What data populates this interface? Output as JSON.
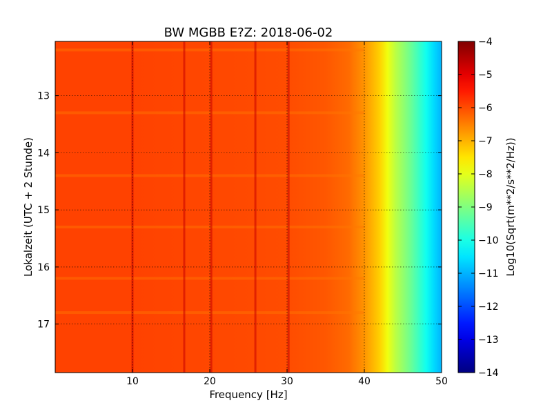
{
  "chart_data": {
    "type": "heatmap",
    "title": "BW MGBB E?Z: 2018-06-02",
    "xlabel": "Frequency [Hz]",
    "ylabel": "Lokalzeit (UTC + 2 Stunde)",
    "xlim": [
      0,
      50
    ],
    "ylim": [
      12.05,
      17.85
    ],
    "y_inverted": true,
    "x_ticks": [
      10,
      20,
      30,
      40,
      50
    ],
    "y_ticks": [
      13,
      14,
      15,
      16,
      17
    ],
    "grid": true,
    "colormap": "jet",
    "colorbar": {
      "label": "Log10(Sqrt(m**2/s**2/Hz))",
      "range": [
        -14,
        -4
      ],
      "ticks": [
        -4,
        -5,
        -6,
        -7,
        -8,
        -9,
        -10,
        -11,
        -12,
        -13,
        -14
      ]
    },
    "spectrum_profile": {
      "frequency_hz": [
        0,
        5,
        10,
        20,
        30,
        35,
        38,
        40,
        42,
        43,
        44,
        46,
        48,
        49,
        50
      ],
      "log10_level": [
        -5.9,
        -5.9,
        -5.9,
        -5.95,
        -6.0,
        -6.1,
        -6.3,
        -6.7,
        -7.3,
        -7.9,
        -8.4,
        -9.2,
        -10.1,
        -10.6,
        -11.0
      ]
    },
    "narrow_lines_hz": [
      10.0,
      16.7,
      20.2,
      25.9,
      30.2
    ],
    "bright_bands_local_time": [
      12.2,
      13.3,
      14.4,
      15.3,
      16.2,
      16.8
    ]
  }
}
